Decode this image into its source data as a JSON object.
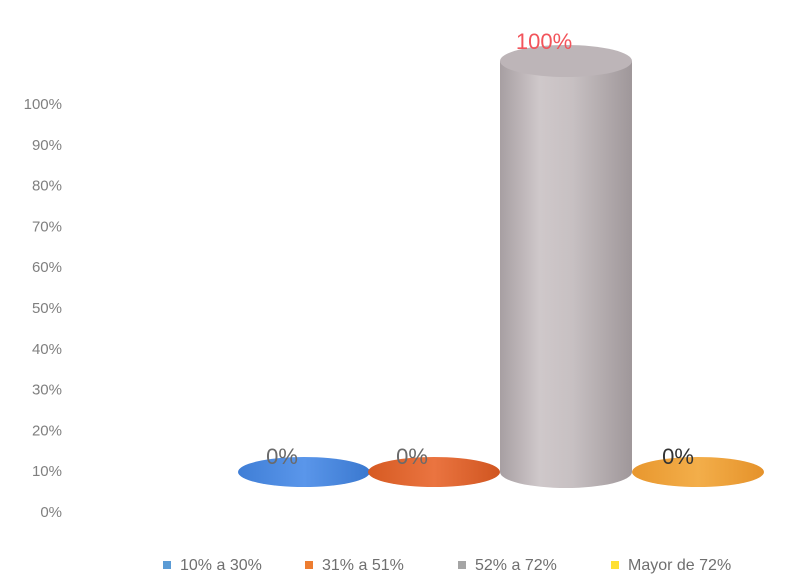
{
  "chart_data": {
    "type": "bar",
    "style": "3d-cylinder",
    "categories": [
      "10% a 30%",
      "31% a 51%",
      "52% a 72%",
      "Mayor de 72%"
    ],
    "values": [
      0,
      0,
      100,
      0
    ],
    "data_labels": [
      "0%",
      "0%",
      "100%",
      "0%"
    ],
    "colors": [
      "#4a86e0",
      "#e0652c",
      "#c3bcbe",
      "#eda13a"
    ],
    "legend_colors": [
      "#5b9bd5",
      "#ed7d31",
      "#a5a5a5",
      "#ffe033"
    ],
    "data_label_colors": [
      "#6a6a6a",
      "#6a6a6a",
      "#f2545b",
      "#333333"
    ],
    "y_ticks": [
      "0%",
      "10%",
      "20%",
      "30%",
      "40%",
      "50%",
      "60%",
      "70%",
      "80%",
      "90%",
      "100%"
    ],
    "ylim": [
      0,
      100
    ],
    "grid": false,
    "legend_position": "bottom"
  }
}
